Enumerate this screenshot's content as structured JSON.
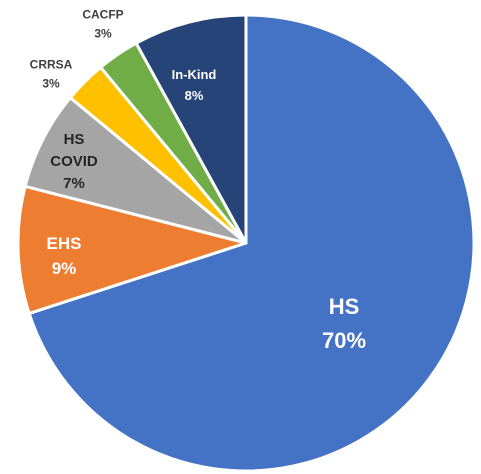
{
  "chart_data": {
    "type": "pie",
    "title": "",
    "slices": [
      {
        "label": "HS",
        "value": 70,
        "pct_label": "70%",
        "color": "#4472C4",
        "text_color": "#FFFFFF"
      },
      {
        "label": "EHS",
        "value": 9,
        "pct_label": "9%",
        "color": "#ED7D31",
        "text_color": "#FFFFFF"
      },
      {
        "label": "HS COVID",
        "value": 7,
        "pct_label": "7%",
        "color": "#A5A5A5",
        "text_color": "#262626"
      },
      {
        "label": "CRRSA",
        "value": 3,
        "pct_label": "3%",
        "color": "#FFC000",
        "text_color": "#404040"
      },
      {
        "label": "CACFP",
        "value": 3,
        "pct_label": "3%",
        "color": "#70AD47",
        "text_color": "#404040"
      },
      {
        "label": "In-Kind",
        "value": 8,
        "pct_label": "8%",
        "color": "#264478",
        "text_color": "#FFFFFF"
      }
    ],
    "start": "12 o'clock",
    "direction": "clockwise",
    "legend": "none"
  }
}
